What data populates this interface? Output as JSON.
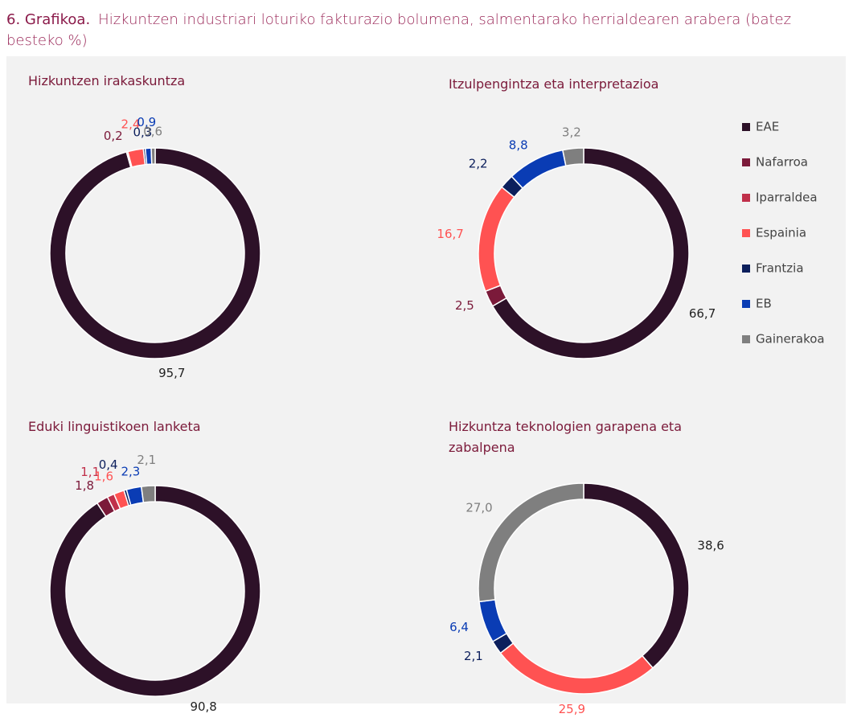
{
  "header": {
    "number": "6. Grafikoa.",
    "title": "Hizkuntzen industriari loturiko fakturazio bolumena, salmentarako herrialdearen arabera (batez besteko %)"
  },
  "legend": {
    "categories": [
      "EAE",
      "Nafarroa",
      "Iparraldea",
      "Espainia",
      "Frantzia",
      "EB",
      "Gainerakoa"
    ],
    "colors": [
      "#2d1128",
      "#7b1a3a",
      "#c0304a",
      "#ff5252",
      "#0c1f5c",
      "#0a3cb4",
      "#7f7f7f"
    ]
  },
  "chart_data": [
    {
      "type": "pie",
      "title": "Hizkuntzen irakaskuntza",
      "values": [
        95.7,
        0.2,
        null,
        2.4,
        0.3,
        0.9,
        0.6
      ],
      "value_labels": [
        "95,7",
        "0,2",
        null,
        "2,4",
        "0,3",
        "0,9",
        "0,6"
      ]
    },
    {
      "type": "pie",
      "title": "Itzulpengintza eta interpretazioa",
      "values": [
        66.7,
        2.5,
        null,
        16.7,
        2.2,
        8.8,
        3.2
      ],
      "value_labels": [
        "66,7",
        "2,5",
        null,
        "16,7",
        "2,2",
        "8,8",
        "3,2"
      ]
    },
    {
      "type": "pie",
      "title": "Eduki linguistikoen lanketa",
      "values": [
        90.8,
        1.8,
        1.1,
        1.6,
        0.4,
        2.3,
        2.1
      ],
      "value_labels": [
        "90,8",
        "1,8",
        "1,1",
        "1,6",
        "0,4",
        "2,3",
        "2,1"
      ]
    },
    {
      "type": "pie",
      "title": "Hizkuntza teknologien garapena eta zabalpena",
      "values": [
        38.6,
        null,
        null,
        25.9,
        2.1,
        6.4,
        27.0
      ],
      "value_labels": [
        "38,6",
        null,
        null,
        "25,9",
        "2,1",
        "6,4",
        "27,0"
      ]
    }
  ]
}
